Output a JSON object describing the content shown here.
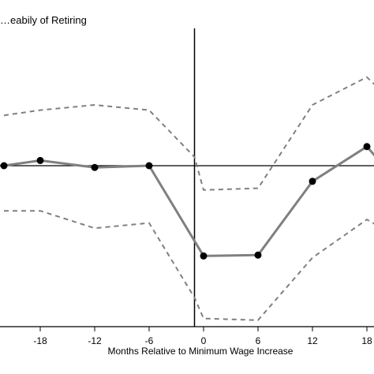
{
  "chart_data": {
    "type": "line",
    "title": "…eabily of Retiring",
    "xlabel": "Months Relative to Minimum Wage Increase",
    "ylabel": "",
    "x_ticks": [
      -18,
      -12,
      -6,
      0,
      6,
      12,
      18
    ],
    "x_tick_labels": [
      "-18",
      "-12",
      "-6",
      "0",
      "6",
      "12",
      "18"
    ],
    "xlim": [
      -22,
      18
    ],
    "ylim": [
      -1.0,
      0.85
    ],
    "vertical_line_x": -1,
    "horizontal_line_y": 0,
    "grid": false,
    "series": [
      {
        "role": "estimate",
        "style": "solid",
        "color": "#808080",
        "markers": true,
        "marker_color": "#000000",
        "x": [
          -22,
          -18,
          -12,
          -6,
          0,
          6,
          12,
          18,
          19
        ],
        "y": [
          0.0,
          0.03,
          -0.01,
          0.0,
          -0.52,
          -0.515,
          -0.09,
          0.11,
          0.05
        ]
      },
      {
        "role": "upper_bound",
        "style": "dashed",
        "color": "#808080",
        "markers": false,
        "x": [
          -22,
          -18,
          -12,
          -6,
          -1,
          0,
          6,
          12,
          18,
          19
        ],
        "y": [
          0.29,
          0.32,
          0.35,
          0.32,
          0.05,
          -0.14,
          -0.13,
          0.35,
          0.51,
          0.46
        ]
      },
      {
        "role": "lower_bound",
        "style": "dashed",
        "color": "#808080",
        "markers": false,
        "x": [
          -22,
          -18,
          -12,
          -6,
          -1,
          0,
          6,
          12,
          18,
          19
        ],
        "y": [
          -0.26,
          -0.26,
          -0.36,
          -0.33,
          -0.76,
          -0.88,
          -0.89,
          -0.53,
          -0.31,
          -0.34
        ]
      }
    ]
  }
}
